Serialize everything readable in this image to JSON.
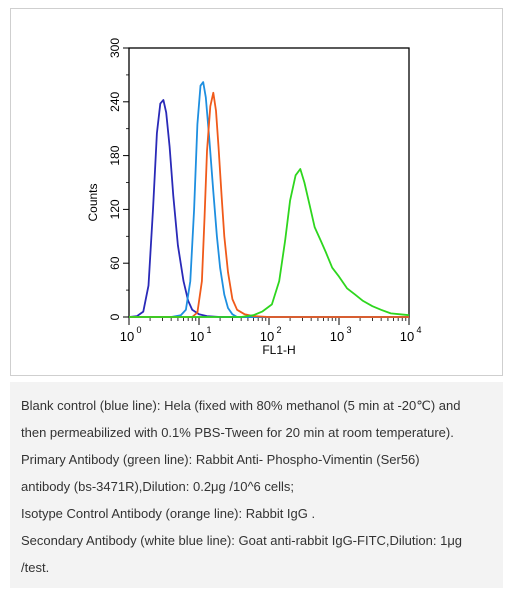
{
  "chart_data": {
    "type": "line",
    "xlabel": "FL1-H",
    "ylabel": "Counts",
    "x_scale": "log",
    "xlim": [
      1,
      10000
    ],
    "ylim": [
      0,
      300
    ],
    "x_ticks": [
      1,
      10,
      100,
      1000,
      10000
    ],
    "x_tick_labels": [
      {
        "base": "10",
        "exp": "0"
      },
      {
        "base": "10",
        "exp": "1"
      },
      {
        "base": "10",
        "exp": "2"
      },
      {
        "base": "10",
        "exp": "3"
      },
      {
        "base": "10",
        "exp": "4"
      }
    ],
    "y_ticks": [
      0,
      60,
      120,
      180,
      240,
      300
    ],
    "y_tick_labels": [
      "0",
      "60",
      "120",
      "180",
      "240",
      "300"
    ],
    "grid": false,
    "legend": "none",
    "series": [
      {
        "color": "#2a2ab8",
        "points": [
          [
            1,
            0
          ],
          [
            1.3,
            1
          ],
          [
            1.6,
            6
          ],
          [
            1.9,
            35
          ],
          [
            2.2,
            120
          ],
          [
            2.5,
            205
          ],
          [
            2.8,
            238
          ],
          [
            3.1,
            242
          ],
          [
            3.4,
            228
          ],
          [
            3.8,
            190
          ],
          [
            4.3,
            135
          ],
          [
            5,
            80
          ],
          [
            6,
            40
          ],
          [
            7,
            18
          ],
          [
            8,
            8
          ],
          [
            10,
            3
          ],
          [
            13,
            1
          ],
          [
            20,
            0
          ],
          [
            10000,
            0
          ]
        ]
      },
      {
        "color": "#1e8fe0",
        "points": [
          [
            1,
            0
          ],
          [
            4,
            0
          ],
          [
            5.5,
            2
          ],
          [
            6.5,
            8
          ],
          [
            7.5,
            40
          ],
          [
            8.5,
            120
          ],
          [
            9.5,
            215
          ],
          [
            10.5,
            258
          ],
          [
            11.5,
            262
          ],
          [
            12.5,
            245
          ],
          [
            14,
            200
          ],
          [
            16,
            140
          ],
          [
            18,
            90
          ],
          [
            20,
            55
          ],
          [
            23,
            25
          ],
          [
            26,
            10
          ],
          [
            30,
            3
          ],
          [
            35,
            0
          ],
          [
            10000,
            0
          ]
        ]
      },
      {
        "color": "#f05a1a",
        "points": [
          [
            1,
            0
          ],
          [
            8,
            0
          ],
          [
            9.5,
            5
          ],
          [
            11,
            40
          ],
          [
            12,
            110
          ],
          [
            13,
            185
          ],
          [
            14.5,
            235
          ],
          [
            16,
            250
          ],
          [
            17.5,
            230
          ],
          [
            19,
            190
          ],
          [
            21,
            135
          ],
          [
            23,
            90
          ],
          [
            26,
            50
          ],
          [
            30,
            20
          ],
          [
            35,
            8
          ],
          [
            45,
            3
          ],
          [
            60,
            1
          ],
          [
            100,
            0
          ],
          [
            10000,
            0
          ]
        ]
      },
      {
        "color": "#2ed61e",
        "points": [
          [
            1,
            0
          ],
          [
            40,
            0
          ],
          [
            60,
            2
          ],
          [
            80,
            6
          ],
          [
            110,
            14
          ],
          [
            140,
            40
          ],
          [
            170,
            85
          ],
          [
            200,
            130
          ],
          [
            240,
            158
          ],
          [
            280,
            165
          ],
          [
            320,
            150
          ],
          [
            380,
            125
          ],
          [
            450,
            100
          ],
          [
            550,
            85
          ],
          [
            650,
            72
          ],
          [
            800,
            55
          ],
          [
            1000,
            45
          ],
          [
            1300,
            32
          ],
          [
            1700,
            25
          ],
          [
            2200,
            18
          ],
          [
            3000,
            12
          ],
          [
            4000,
            8
          ],
          [
            5500,
            4
          ],
          [
            7500,
            3
          ],
          [
            10000,
            2
          ]
        ]
      }
    ]
  },
  "caption": {
    "lines": [
      "Blank control (blue line): Hela (fixed with 80% methanol (5 min at -20℃) and",
      "then permeabilized with 0.1% PBS-Tween for 20 min at room temperature).",
      "Primary Antibody (green line): Rabbit Anti- Phospho-Vimentin (Ser56)",
      "antibody (bs-3471R),Dilution: 0.2μg /10^6 cells;",
      "Isotype Control Antibody (orange line): Rabbit IgG .",
      "Secondary Antibody (white blue line): Goat anti-rabbit IgG-FITC,Dilution: 1μg",
      "/test."
    ]
  }
}
